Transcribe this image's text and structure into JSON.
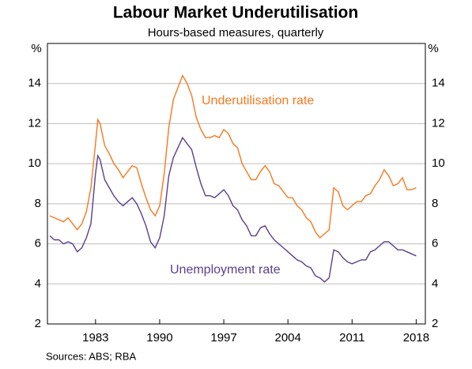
{
  "chart_data": {
    "type": "line",
    "title": "Labour Market Underutilisation",
    "subtitle": "Hours-based measures, quarterly",
    "y_unit": "%",
    "source": "Sources: ABS; RBA",
    "x": [
      1978,
      1978.5,
      1979,
      1979.5,
      1980,
      1980.5,
      1981,
      1981.5,
      1982,
      1982.5,
      1983,
      1983.25,
      1983.5,
      1984,
      1984.5,
      1985,
      1985.5,
      1986,
      1986.5,
      1987,
      1987.5,
      1988,
      1988.5,
      1989,
      1989.5,
      1990,
      1990.5,
      1991,
      1991.5,
      1992,
      1992.5,
      1993,
      1993.5,
      1994,
      1994.5,
      1995,
      1995.5,
      1996,
      1996.5,
      1997,
      1997.5,
      1998,
      1998.5,
      1999,
      1999.5,
      2000,
      2000.5,
      2001,
      2001.5,
      2002,
      2002.5,
      2003,
      2003.5,
      2004,
      2004.5,
      2005,
      2005.5,
      2006,
      2006.5,
      2007,
      2007.5,
      2008,
      2008.5,
      2009,
      2009.5,
      2010,
      2010.5,
      2011,
      2011.5,
      2012,
      2012.5,
      2013,
      2013.5,
      2014,
      2014.5,
      2015,
      2015.5,
      2016,
      2016.5,
      2017,
      2017.5,
      2018
    ],
    "series": [
      {
        "name": "Underutilisation rate",
        "color": "#f47920",
        "values": [
          7.4,
          7.3,
          7.2,
          7.1,
          7.3,
          7.0,
          6.7,
          7.0,
          7.6,
          8.8,
          11.0,
          12.2,
          12.0,
          10.9,
          10.5,
          10.0,
          9.7,
          9.3,
          9.6,
          9.9,
          9.8,
          9.0,
          8.3,
          7.7,
          7.4,
          7.9,
          9.5,
          11.8,
          13.2,
          13.8,
          14.4,
          14.0,
          13.4,
          12.3,
          11.7,
          11.3,
          11.3,
          11.4,
          11.3,
          11.7,
          11.5,
          11.0,
          10.8,
          10.0,
          9.6,
          9.2,
          9.2,
          9.6,
          9.9,
          9.6,
          9.0,
          8.9,
          8.6,
          8.3,
          8.3,
          7.9,
          7.7,
          7.3,
          7.1,
          6.6,
          6.3,
          6.5,
          6.7,
          8.8,
          8.6,
          7.9,
          7.7,
          7.9,
          8.1,
          8.1,
          8.4,
          8.5,
          8.9,
          9.2,
          9.7,
          9.4,
          8.9,
          9.0,
          9.3,
          8.7,
          8.7,
          8.8
        ]
      },
      {
        "name": "Unemployment rate",
        "color": "#5b3f8c",
        "values": [
          6.4,
          6.2,
          6.2,
          6.0,
          6.1,
          6.0,
          5.6,
          5.8,
          6.3,
          7.0,
          9.5,
          10.4,
          10.2,
          9.2,
          8.8,
          8.4,
          8.1,
          7.9,
          8.1,
          8.3,
          8.0,
          7.5,
          6.9,
          6.1,
          5.8,
          6.3,
          7.4,
          9.4,
          10.3,
          10.8,
          11.3,
          11.0,
          10.7,
          9.8,
          9.0,
          8.4,
          8.4,
          8.3,
          8.5,
          8.7,
          8.4,
          7.9,
          7.7,
          7.2,
          6.9,
          6.4,
          6.4,
          6.8,
          6.9,
          6.5,
          6.2,
          6.0,
          5.8,
          5.6,
          5.4,
          5.2,
          5.1,
          4.9,
          4.8,
          4.4,
          4.3,
          4.1,
          4.3,
          5.7,
          5.6,
          5.3,
          5.1,
          5.0,
          5.1,
          5.2,
          5.2,
          5.6,
          5.7,
          5.9,
          6.1,
          6.1,
          5.9,
          5.7,
          5.7,
          5.6,
          5.5,
          5.4
        ]
      }
    ],
    "xlim": [
      1977.75,
      2019
    ],
    "xticks": [
      1983,
      1990,
      1997,
      2004,
      2011,
      2018
    ],
    "ylim": [
      2,
      16
    ],
    "yticks": [
      2,
      4,
      6,
      8,
      10,
      12,
      14
    ],
    "grid": true
  }
}
